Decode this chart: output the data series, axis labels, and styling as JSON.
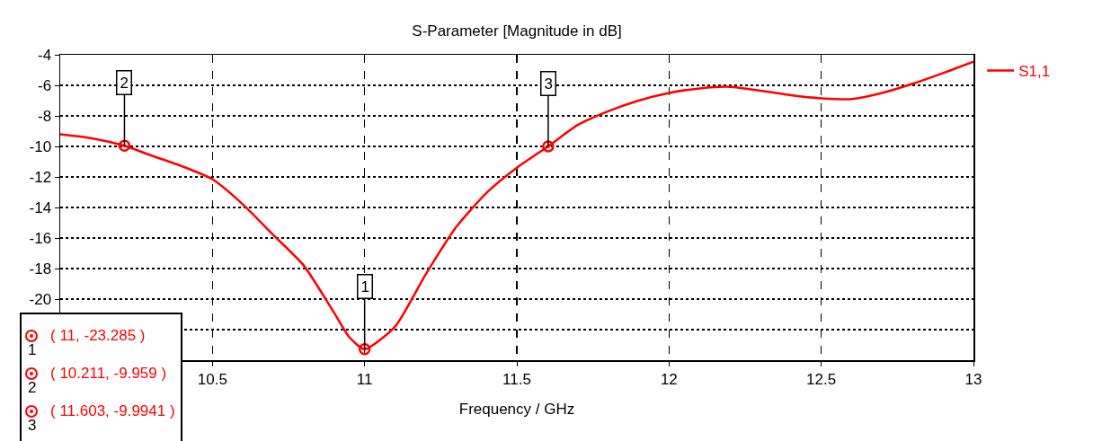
{
  "chart_data": {
    "type": "line",
    "title": "S-Parameter [Magnitude in dB]",
    "xlabel": "Frequency / GHz",
    "x": [
      10,
      10.1,
      10.211,
      10.3,
      10.4,
      10.5,
      10.6,
      10.7,
      10.8,
      10.9,
      10.95,
      11,
      11.1,
      11.2,
      11.3,
      11.4,
      11.5,
      11.603,
      11.7,
      11.8,
      11.9,
      12,
      12.1,
      12.2,
      12.3,
      12.4,
      12.5,
      12.6,
      12.7,
      12.8,
      12.9,
      13
    ],
    "series": [
      {
        "name": "S1,1",
        "color": "#ff0000",
        "marker": "none",
        "values": [
          -9.2,
          -9.45,
          -9.959,
          -10.6,
          -11.3,
          -12.15,
          -13.8,
          -15.8,
          -17.8,
          -20.9,
          -22.5,
          -23.285,
          -21.8,
          -18.4,
          -15.3,
          -13.05,
          -11.4,
          -9.9941,
          -8.6,
          -7.7,
          -7.0,
          -6.5,
          -6.2,
          -6.1,
          -6.35,
          -6.65,
          -6.85,
          -6.9,
          -6.5,
          -5.9,
          -5.2,
          -4.45
        ]
      },
      {
        "type": "scatter",
        "color": "#ff0000",
        "marker": "circle",
        "x": [
          11,
          10.211,
          11.603
        ],
        "values": [
          -23.285,
          -9.959,
          -9.9941
        ]
      }
    ],
    "xlim": [
      10,
      13
    ],
    "xticks": [
      10.5,
      11,
      11.5,
      12,
      12.5,
      13
    ],
    "ylim": [
      -24,
      -4
    ],
    "yticks": [
      -4,
      -6,
      -8,
      -10,
      -12,
      -14,
      -16,
      -18,
      -20,
      {
        "value": -22,
        "label": null
      },
      {
        "value": -24,
        "label": null
      }
    ],
    "grid": true,
    "legend": "top right",
    "line_style": "solid",
    "annotations": [
      {
        "text": "1",
        "x": 11,
        "y": -23.285
      },
      {
        "text": "2",
        "x": 10.211,
        "y": -9.959
      },
      {
        "text": "3",
        "x": 11.603,
        "y": -9.9941
      },
      "( 11, -23.285 )",
      "( 10.211, -9.959 )",
      "( 11.603, -9.9941 )"
    ]
  }
}
